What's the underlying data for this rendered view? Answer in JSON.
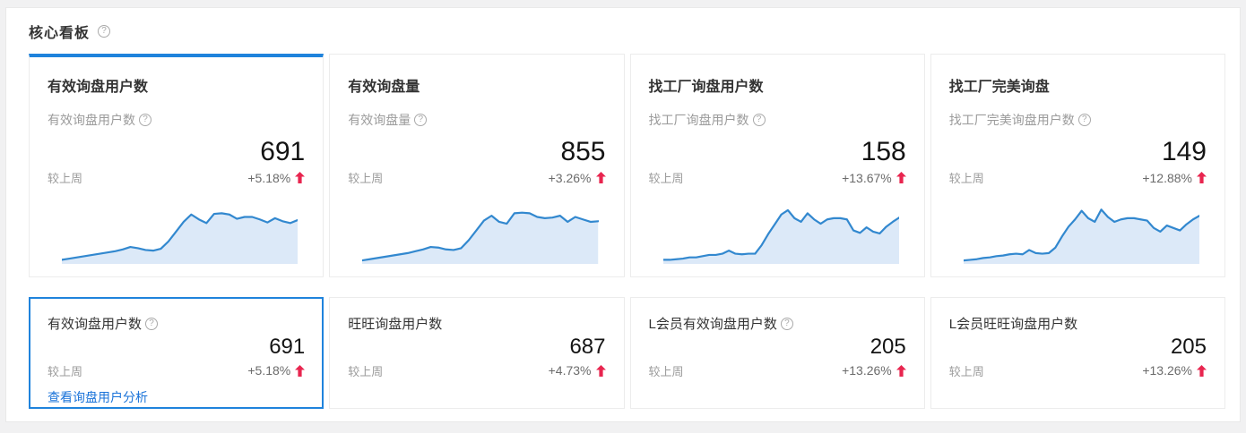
{
  "colors": {
    "accent": "#1f83dc",
    "link": "#1a73d9",
    "rise": "#e8254f",
    "spark_line": "#3288cf",
    "spark_fill": "#dce9f8"
  },
  "header": {
    "title": "核心看板",
    "help_icon": "question-circle-icon"
  },
  "labels": {
    "vs_last_week": "较上周"
  },
  "top_cards": [
    {
      "title": "有效询盘用户数",
      "subtitle": "有效询盘用户数",
      "has_info": true,
      "value": "691",
      "change": "+5.18%",
      "trend": "up",
      "selected": true
    },
    {
      "title": "有效询盘量",
      "subtitle": "有效询盘量",
      "has_info": true,
      "value": "855",
      "change": "+3.26%",
      "trend": "up",
      "selected": false
    },
    {
      "title": "找工厂询盘用户数",
      "subtitle": "找工厂询盘用户数",
      "has_info": true,
      "value": "158",
      "change": "+13.67%",
      "trend": "up",
      "selected": false
    },
    {
      "title": "找工厂完美询盘",
      "subtitle": "找工厂完美询盘用户数",
      "has_info": true,
      "value": "149",
      "change": "+12.88%",
      "trend": "up",
      "selected": false
    }
  ],
  "bottom_cards": [
    {
      "title": "有效询盘用户数",
      "has_info": true,
      "value": "691",
      "change": "+5.18%",
      "trend": "up",
      "selected": true,
      "link": "查看询盘用户分析"
    },
    {
      "title": "旺旺询盘用户数",
      "has_info": false,
      "value": "687",
      "change": "+4.73%",
      "trend": "up",
      "selected": false,
      "link": ""
    },
    {
      "title": "L会员有效询盘用户数",
      "has_info": true,
      "value": "205",
      "change": "+13.26%",
      "trend": "up",
      "selected": false,
      "link": ""
    },
    {
      "title": "L会员旺旺询盘用户数",
      "has_info": false,
      "value": "205",
      "change": "+13.26%",
      "trend": "up",
      "selected": false,
      "link": ""
    }
  ],
  "chart_data": [
    {
      "type": "area",
      "title": "有效询盘用户数 trend sparkline",
      "note": "no axes shown; values normalized 0-100",
      "ylim": [
        0,
        100
      ],
      "values": [
        4,
        6,
        8,
        10,
        12,
        14,
        16,
        18,
        21,
        25,
        23,
        20,
        19,
        22,
        34,
        50,
        66,
        78,
        70,
        64,
        79,
        80,
        78,
        71,
        74,
        74,
        70,
        65,
        72,
        67,
        64,
        69
      ]
    },
    {
      "type": "area",
      "title": "有效询盘量 trend sparkline",
      "note": "no axes shown; values normalized 0-100",
      "ylim": [
        0,
        100
      ],
      "values": [
        3,
        5,
        7,
        9,
        11,
        13,
        15,
        18,
        21,
        25,
        24,
        21,
        20,
        23,
        36,
        52,
        68,
        76,
        66,
        63,
        80,
        81,
        80,
        74,
        72,
        73,
        76,
        66,
        74,
        70,
        66,
        67
      ]
    },
    {
      "type": "area",
      "title": "找工厂询盘用户数 trend sparkline",
      "note": "no axes shown; values normalized 0-100",
      "ylim": [
        0,
        100
      ],
      "values": [
        4,
        4,
        5,
        6,
        8,
        8,
        10,
        12,
        12,
        14,
        19,
        14,
        13,
        14,
        14,
        28,
        46,
        62,
        78,
        85,
        72,
        66,
        80,
        70,
        63,
        70,
        72,
        72,
        70,
        52,
        48,
        57,
        50,
        47,
        58,
        66,
        73
      ]
    },
    {
      "type": "area",
      "title": "找工厂完美询盘 trend sparkline",
      "note": "no axes shown; values normalized 0-100",
      "ylim": [
        0,
        100
      ],
      "values": [
        3,
        4,
        5,
        7,
        8,
        10,
        11,
        13,
        14,
        13,
        20,
        15,
        14,
        15,
        24,
        42,
        58,
        70,
        84,
        72,
        66,
        86,
        74,
        66,
        70,
        72,
        72,
        70,
        68,
        56,
        50,
        60,
        56,
        52,
        62,
        70,
        76
      ]
    }
  ]
}
